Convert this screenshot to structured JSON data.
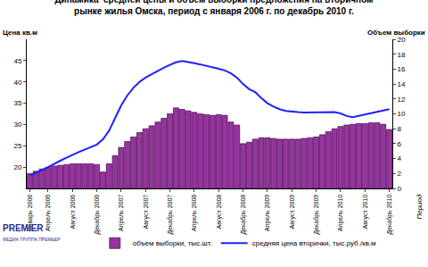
{
  "chart_data": {
    "type": "bar",
    "title": "Динамика  средней цены и объем выборки предложения на вторичном\nрынке жилья Омска, период с января 2006 г. по декабрь 2010 г.",
    "ylabel": "Цена кв.м",
    "y2label": "Объем выборки",
    "xlabel": "Период",
    "annotations": [
      "PREMIER",
      "МЕДИА ГРУППА ПРЕМЬЕР"
    ],
    "categories": [
      "Январь 2006",
      null,
      null,
      "Апрель 2006",
      null,
      null,
      null,
      "Август 2006",
      null,
      null,
      null,
      "Декабрь 2006",
      null,
      null,
      null,
      "Апрель 2007",
      null,
      null,
      null,
      "Август 2007",
      null,
      null,
      null,
      "Декабрь 2007",
      null,
      null,
      null,
      "Апрель 2008",
      null,
      null,
      null,
      "Август 2008",
      null,
      null,
      null,
      "Декабрь 2008",
      null,
      null,
      null,
      "Апрель 2009",
      null,
      null,
      null,
      "Август 2009",
      null,
      null,
      null,
      "Декабрь 2009",
      null,
      null,
      null,
      "Апрель 2010",
      null,
      null,
      null,
      "Август 2010",
      null,
      null,
      null,
      "Декабрь 2010"
    ],
    "series": [
      {
        "name": "объем выборки, тыс.шт.",
        "type": "bar",
        "axis": "y2",
        "color": "#9933a0",
        "values": [
          2.0,
          2.3,
          2.6,
          2.8,
          3.0,
          3.1,
          3.2,
          3.3,
          3.3,
          3.3,
          3.3,
          3.2,
          2.2,
          3.3,
          4.4,
          5.5,
          6.3,
          6.9,
          7.5,
          8.0,
          8.4,
          8.9,
          9.4,
          10.0,
          10.8,
          10.6,
          10.4,
          10.2,
          10.0,
          9.9,
          9.8,
          9.9,
          9.8,
          8.9,
          8.5,
          6.0,
          6.2,
          6.6,
          6.8,
          6.8,
          6.7,
          6.6,
          6.6,
          6.6,
          6.6,
          6.7,
          6.8,
          6.9,
          7.2,
          7.6,
          8.0,
          8.3,
          8.5,
          8.6,
          8.7,
          8.7,
          8.8,
          8.8,
          8.6,
          7.9
        ]
      },
      {
        "name": "средняя цена вторички, тыс.руб./кв.м",
        "type": "line",
        "color": "#1f1fff",
        "values": [
          18.0,
          18.6,
          19.3,
          20.0,
          20.8,
          21.5,
          22.2,
          22.9,
          23.5,
          24.1,
          24.7,
          25.3,
          26.5,
          28.5,
          31.5,
          34.5,
          36.8,
          38.6,
          40.0,
          41.0,
          41.8,
          42.6,
          43.3,
          44.0,
          44.6,
          44.9,
          44.7,
          44.4,
          44.1,
          43.8,
          43.5,
          43.1,
          42.7,
          42.0,
          41.0,
          39.5,
          38.3,
          37.6,
          36.2,
          35.0,
          34.2,
          33.6,
          33.2,
          33.0,
          32.9,
          32.8,
          32.8,
          32.8,
          32.8,
          32.9,
          32.9,
          32.6,
          32.0,
          31.7,
          32.0,
          32.3,
          32.6,
          32.9,
          33.2,
          33.6
        ]
      }
    ],
    "ylim": [
      15,
      50
    ],
    "yticks": [
      20,
      25,
      30,
      35,
      40,
      45
    ],
    "y2lim": [
      0,
      20
    ],
    "y2ticks": [
      0,
      2,
      4,
      6,
      8,
      10,
      12,
      14,
      16,
      18,
      20
    ],
    "grid": false,
    "legend": "bottom"
  }
}
